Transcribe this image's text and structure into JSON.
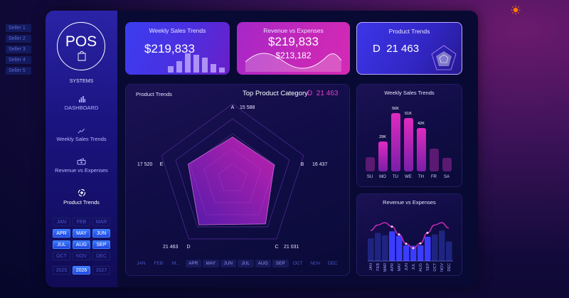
{
  "sellers": [
    "Seller 1",
    "Seller 2",
    "Seller 3",
    "Seller 4",
    "Seller 5"
  ],
  "theme_toggle": {
    "icon": "sun-icon",
    "color": "#ff7a00"
  },
  "sidebar": {
    "logo_text": "POS",
    "subtitle": "SYSTEMS",
    "nav": [
      {
        "label": "DASHBOARD",
        "icon": "bar-chart-icon"
      },
      {
        "label": "Weekly Sales Trends",
        "icon": "trend-line-icon"
      },
      {
        "label": "Revenue vs Expenses",
        "icon": "cash-icon"
      },
      {
        "label": "Product Trends",
        "icon": "refresh-cycle-icon",
        "active": true
      }
    ],
    "months": [
      {
        "label": "JAN",
        "selected": false
      },
      {
        "label": "FEB",
        "selected": false
      },
      {
        "label": "MAR",
        "selected": false
      },
      {
        "label": "APR",
        "selected": true
      },
      {
        "label": "MAY",
        "selected": true
      },
      {
        "label": "JUN",
        "selected": true
      },
      {
        "label": "JUL",
        "selected": true
      },
      {
        "label": "AUG",
        "selected": true
      },
      {
        "label": "SEP",
        "selected": true
      },
      {
        "label": "OCT",
        "selected": false
      },
      {
        "label": "NOV",
        "selected": false
      },
      {
        "label": "DEC",
        "selected": false
      }
    ],
    "years": [
      {
        "label": "2025",
        "selected": false
      },
      {
        "label": "2026",
        "selected": true
      },
      {
        "label": "2027",
        "selected": false
      }
    ]
  },
  "kpis": {
    "weekly": {
      "title": "Weekly Sales Trends",
      "value": "$219,833"
    },
    "revenue": {
      "title": "Revenue vs Expenses",
      "value": "$219,833",
      "sub_value": "$213,182"
    },
    "product": {
      "title": "Product Trends",
      "category": "D",
      "value": "21 463"
    }
  },
  "main_panel": {
    "title": "Product Trends",
    "top_label": "Top Product Category",
    "top_category": "D",
    "top_value": "21 463",
    "accent": "#e040c8",
    "month_strip": [
      {
        "label": "JAN",
        "selected": false
      },
      {
        "label": "FEB",
        "selected": false
      },
      {
        "label": "M...",
        "selected": false
      },
      {
        "label": "APR",
        "selected": true
      },
      {
        "label": "MAY",
        "selected": true
      },
      {
        "label": "JUN",
        "selected": true
      },
      {
        "label": "JUL",
        "selected": true
      },
      {
        "label": "AUG",
        "selected": true
      },
      {
        "label": "SEP",
        "selected": true
      },
      {
        "label": "OCT",
        "selected": false
      },
      {
        "label": "NOV",
        "selected": false
      },
      {
        "label": "DEC",
        "selected": false
      }
    ]
  },
  "weekly_panel": {
    "title": "Weekly Sales Trends"
  },
  "revenue_panel": {
    "title": "Revenue vs Expenses"
  },
  "chart_data": [
    {
      "type": "radar",
      "title": "Product Trends",
      "categories": [
        "A",
        "B",
        "C",
        "D",
        "E"
      ],
      "values": [
        15588,
        16437,
        21031,
        21463,
        17520
      ],
      "value_labels": [
        "15 588",
        "16 437",
        "21 031",
        "21 463",
        "17 520"
      ],
      "rmax": 28000
    },
    {
      "type": "bar",
      "title": "Weekly Sales Trends",
      "categories": [
        "SU",
        "MO",
        "TU",
        "WE",
        "TH",
        "FR",
        "SA"
      ],
      "values": [
        14,
        29,
        56,
        51,
        42,
        22,
        13
      ],
      "labels": [
        "",
        "29K",
        "56K",
        "51K",
        "42K",
        "",
        ""
      ],
      "highlighted": [
        false,
        true,
        true,
        true,
        true,
        false,
        false
      ],
      "unit": "K"
    },
    {
      "type": "bar+line",
      "title": "Revenue vs Expenses",
      "categories": [
        "JAN",
        "FEB",
        "MAR",
        "APR",
        "MAY",
        "JUN",
        "JUL",
        "AUG",
        "SEP",
        "OCT",
        "NOV",
        "DEC"
      ],
      "series": [
        {
          "name": "Revenue",
          "type": "bar",
          "values": [
            58,
            72,
            66,
            76,
            65,
            40,
            39,
            40,
            62,
            68,
            78,
            50
          ]
        },
        {
          "name": "Expenses",
          "type": "line",
          "values": [
            78,
            92,
            98,
            88,
            68,
            44,
            33,
            45,
            72,
            92,
            98,
            84
          ]
        }
      ],
      "highlighted": [
        false,
        false,
        false,
        true,
        true,
        true,
        true,
        true,
        true,
        false,
        false,
        false
      ]
    }
  ]
}
